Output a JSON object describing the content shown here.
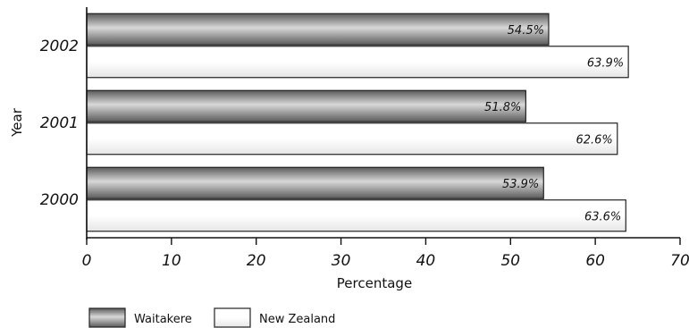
{
  "chart_data": {
    "type": "bar",
    "orientation": "horizontal",
    "categories": [
      "2002",
      "2001",
      "2000"
    ],
    "series": [
      {
        "name": "Waitakere",
        "values": [
          54.5,
          51.8,
          53.9
        ],
        "labels": [
          "54.5%",
          "51.8%",
          "53.9%"
        ],
        "color": "#7a7a7a"
      },
      {
        "name": "New Zealand",
        "values": [
          63.9,
          62.6,
          63.6
        ],
        "labels": [
          "63.9%",
          "62.6%",
          "63.6%"
        ],
        "color": "#ffffff"
      }
    ],
    "xlabel": "Percentage",
    "ylabel": "Year",
    "xlim": [
      0,
      70
    ],
    "xticks": [
      "0",
      "10",
      "20",
      "30",
      "40",
      "50",
      "60",
      "70"
    ],
    "grid": false,
    "legend_position": "bottom-left"
  }
}
